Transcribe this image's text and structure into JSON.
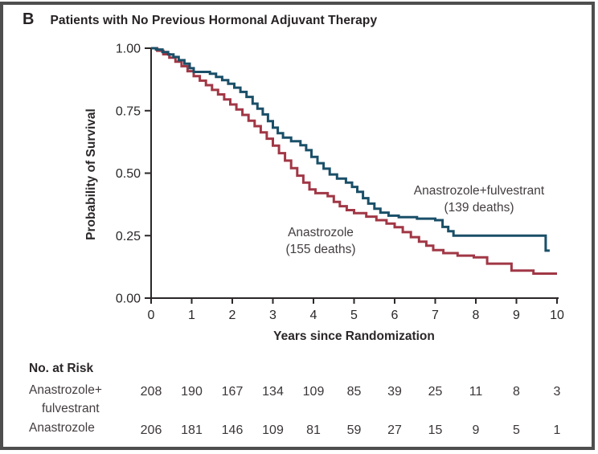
{
  "panel": {
    "label": "B",
    "title": "Patients with No Previous Hormonal Adjuvant Therapy"
  },
  "chart_data": {
    "type": "line",
    "subtype": "kaplan_meier_step",
    "title": "Patients with No Previous Hormonal Adjuvant Therapy",
    "xlabel": "Years since Randomization",
    "ylabel": "Probability of Survival",
    "xlim": [
      0,
      10
    ],
    "ylim": [
      0.0,
      1.0
    ],
    "xticks": [
      "0",
      "1",
      "2",
      "3",
      "4",
      "5",
      "6",
      "7",
      "8",
      "9",
      "10"
    ],
    "yticks": [
      "0.00",
      "0.25",
      "0.50",
      "0.75",
      "1.00"
    ],
    "grid": false,
    "legend_position": "annotations-on-plot",
    "axis_color": "#2b2728",
    "series": [
      {
        "name": "Anastrozole+fulvestrant",
        "deaths": 139,
        "color": "#1a4f68",
        "annotation": {
          "line1": "Anastrozole+fulvestrant",
          "line2": "(139 deaths)"
        },
        "points": [
          [
            0,
            1.0
          ],
          [
            0.12,
            0.995
          ],
          [
            0.28,
            0.985
          ],
          [
            0.42,
            0.975
          ],
          [
            0.55,
            0.965
          ],
          [
            0.68,
            0.952
          ],
          [
            0.82,
            0.938
          ],
          [
            0.95,
            0.92
          ],
          [
            1.05,
            0.905
          ],
          [
            1.45,
            0.898
          ],
          [
            1.6,
            0.885
          ],
          [
            1.75,
            0.872
          ],
          [
            1.9,
            0.858
          ],
          [
            2.05,
            0.842
          ],
          [
            2.2,
            0.825
          ],
          [
            2.35,
            0.805
          ],
          [
            2.5,
            0.778
          ],
          [
            2.62,
            0.758
          ],
          [
            2.75,
            0.735
          ],
          [
            2.88,
            0.708
          ],
          [
            3.0,
            0.682
          ],
          [
            3.12,
            0.66
          ],
          [
            3.25,
            0.642
          ],
          [
            3.45,
            0.628
          ],
          [
            3.68,
            0.612
          ],
          [
            3.82,
            0.592
          ],
          [
            3.95,
            0.565
          ],
          [
            4.1,
            0.54
          ],
          [
            4.25,
            0.518
          ],
          [
            4.4,
            0.495
          ],
          [
            4.58,
            0.478
          ],
          [
            4.8,
            0.462
          ],
          [
            4.95,
            0.445
          ],
          [
            5.08,
            0.425
          ],
          [
            5.22,
            0.4
          ],
          [
            5.35,
            0.378
          ],
          [
            5.5,
            0.358
          ],
          [
            5.65,
            0.342
          ],
          [
            5.85,
            0.33
          ],
          [
            6.1,
            0.324
          ],
          [
            6.55,
            0.318
          ],
          [
            7.0,
            0.312
          ],
          [
            7.18,
            0.285
          ],
          [
            7.32,
            0.268
          ],
          [
            7.45,
            0.25
          ],
          [
            9.7,
            0.25
          ],
          [
            9.72,
            0.19
          ],
          [
            9.82,
            0.19
          ]
        ]
      },
      {
        "name": "Anastrozole",
        "deaths": 155,
        "color": "#a13745",
        "annotation": {
          "line1": "Anastrozole",
          "line2": "(155 deaths)"
        },
        "points": [
          [
            0,
            1.0
          ],
          [
            0.15,
            0.99
          ],
          [
            0.3,
            0.976
          ],
          [
            0.45,
            0.962
          ],
          [
            0.6,
            0.946
          ],
          [
            0.75,
            0.928
          ],
          [
            0.9,
            0.908
          ],
          [
            1.05,
            0.888
          ],
          [
            1.2,
            0.87
          ],
          [
            1.35,
            0.852
          ],
          [
            1.5,
            0.833
          ],
          [
            1.65,
            0.815
          ],
          [
            1.8,
            0.795
          ],
          [
            1.95,
            0.775
          ],
          [
            2.1,
            0.755
          ],
          [
            2.25,
            0.733
          ],
          [
            2.4,
            0.71
          ],
          [
            2.55,
            0.688
          ],
          [
            2.7,
            0.663
          ],
          [
            2.85,
            0.638
          ],
          [
            3.0,
            0.61
          ],
          [
            3.15,
            0.58
          ],
          [
            3.3,
            0.55
          ],
          [
            3.45,
            0.52
          ],
          [
            3.6,
            0.49
          ],
          [
            3.75,
            0.462
          ],
          [
            3.9,
            0.435
          ],
          [
            4.05,
            0.42
          ],
          [
            4.35,
            0.408
          ],
          [
            4.5,
            0.385
          ],
          [
            4.65,
            0.368
          ],
          [
            4.82,
            0.352
          ],
          [
            5.0,
            0.34
          ],
          [
            5.3,
            0.326
          ],
          [
            5.55,
            0.312
          ],
          [
            5.8,
            0.298
          ],
          [
            6.0,
            0.284
          ],
          [
            6.2,
            0.264
          ],
          [
            6.4,
            0.244
          ],
          [
            6.6,
            0.226
          ],
          [
            6.78,
            0.21
          ],
          [
            6.95,
            0.192
          ],
          [
            7.2,
            0.18
          ],
          [
            7.55,
            0.17
          ],
          [
            7.95,
            0.163
          ],
          [
            8.28,
            0.138
          ],
          [
            8.88,
            0.11
          ],
          [
            9.42,
            0.098
          ],
          [
            10.0,
            0.098
          ]
        ]
      }
    ],
    "at_risk": {
      "header": "No. at Risk",
      "rows": [
        {
          "label_line1": "Anastrozole+",
          "label_line2": "fulvestrant",
          "values": [
            208,
            190,
            167,
            134,
            109,
            85,
            39,
            25,
            11,
            8,
            3
          ]
        },
        {
          "label_line1": "Anastrozole",
          "label_line2": "",
          "values": [
            206,
            181,
            146,
            109,
            81,
            59,
            27,
            15,
            9,
            5,
            1
          ]
        }
      ]
    }
  }
}
